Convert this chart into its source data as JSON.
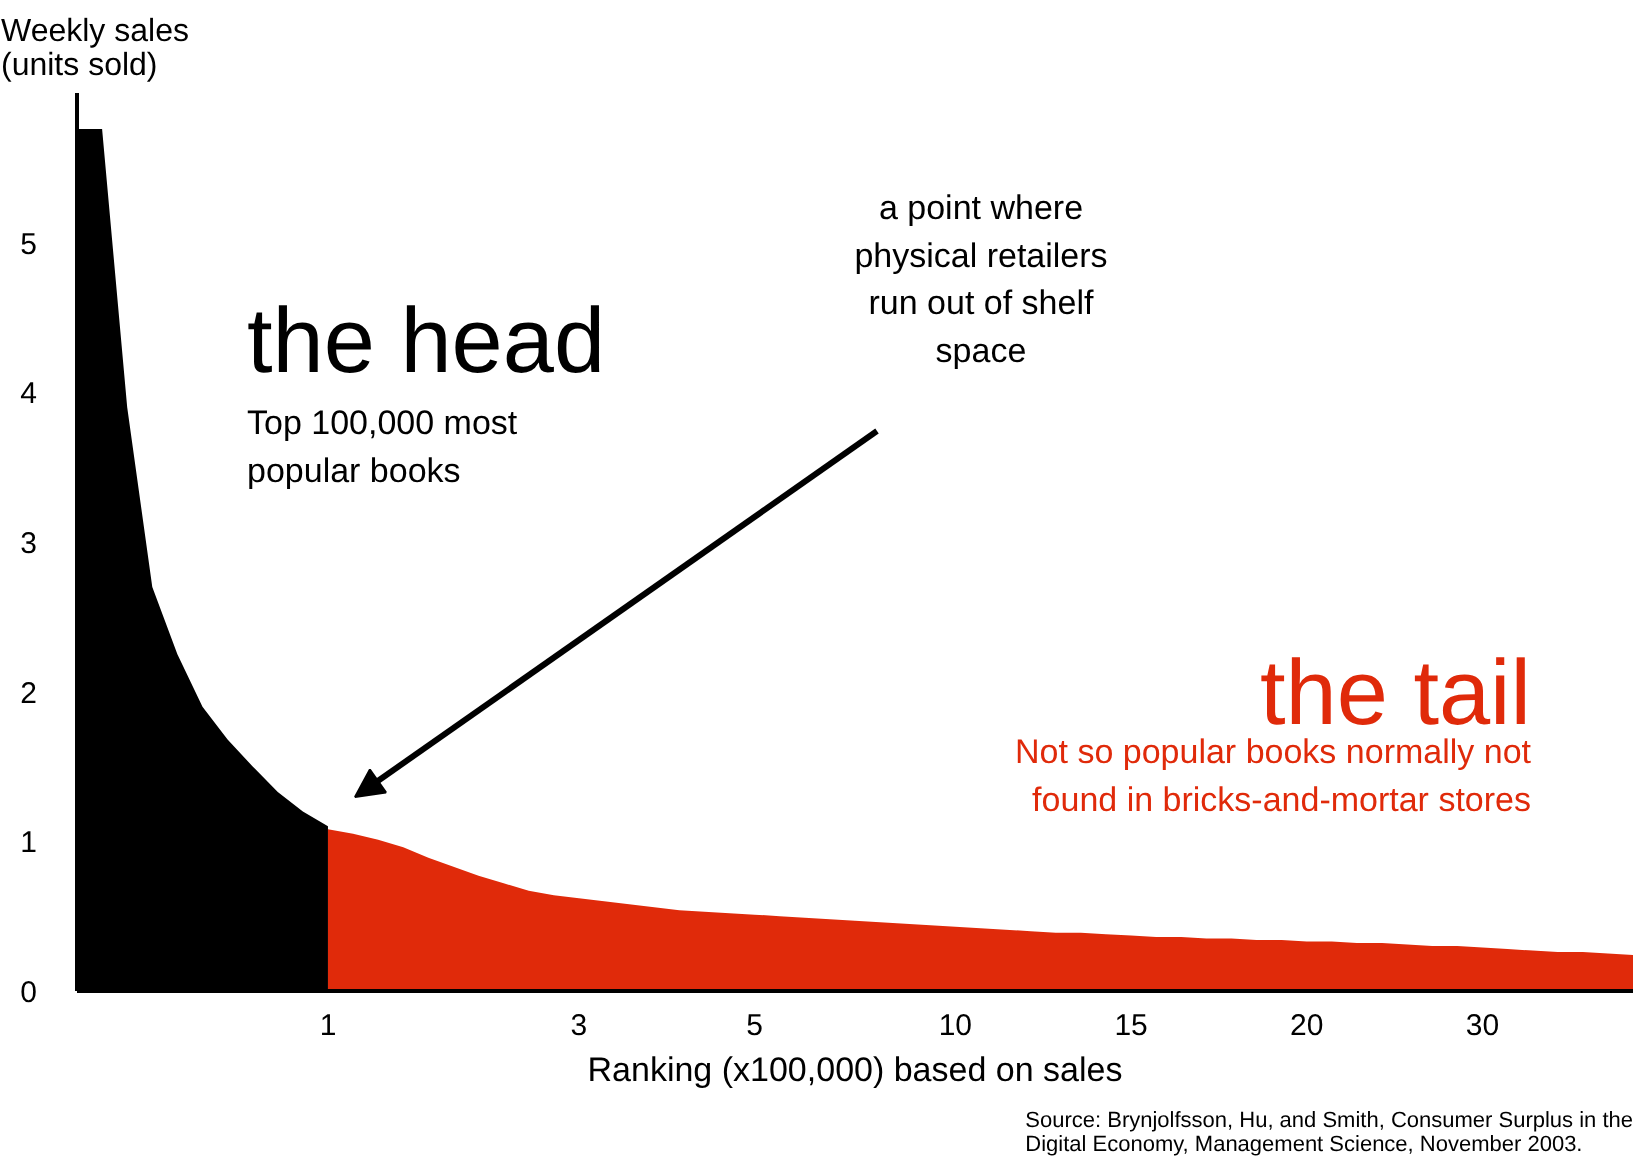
{
  "chart_data": {
    "type": "area",
    "ylabel": "Weekly sales\n(units sold)",
    "xlabel": "Ranking (x100,000) based on sales",
    "ylim": [
      0,
      6.0
    ],
    "yticks": [
      0,
      1,
      2,
      3,
      4,
      5
    ],
    "categories": [
      null,
      null,
      null,
      null,
      null,
      null,
      null,
      null,
      null,
      null,
      "1",
      null,
      null,
      null,
      null,
      null,
      null,
      null,
      null,
      null,
      "3",
      null,
      null,
      null,
      null,
      null,
      null,
      "5",
      null,
      null,
      null,
      null,
      null,
      null,
      null,
      "10",
      null,
      null,
      null,
      null,
      null,
      null,
      "15",
      null,
      null,
      null,
      null,
      null,
      null,
      "20",
      null,
      null,
      null,
      null,
      null,
      null,
      "30",
      null,
      null,
      null,
      null,
      null,
      null
    ],
    "series": [
      {
        "name": "the head",
        "color": "#000000",
        "values": [
          5.76,
          5.76,
          3.9,
          2.7,
          2.25,
          1.9,
          1.68,
          1.5,
          1.33,
          1.2,
          1.1,
          null,
          null,
          null,
          null,
          null,
          null,
          null,
          null,
          null,
          null,
          null,
          null,
          null,
          null,
          null,
          null,
          null,
          null,
          null,
          null,
          null,
          null,
          null,
          null,
          null,
          null,
          null,
          null,
          null,
          null,
          null,
          null,
          null,
          null,
          null,
          null,
          null,
          null,
          null,
          null,
          null,
          null,
          null,
          null,
          null,
          null,
          null,
          null,
          null,
          null,
          null,
          null
        ]
      },
      {
        "name": "the tail",
        "color": "#e02a0a",
        "values": [
          null,
          null,
          null,
          null,
          null,
          null,
          null,
          null,
          null,
          null,
          1.08,
          1.05,
          1.01,
          0.96,
          0.89,
          0.83,
          0.77,
          0.72,
          0.67,
          0.64,
          0.62,
          0.6,
          0.58,
          0.56,
          0.54,
          0.53,
          0.52,
          0.51,
          0.5,
          0.49,
          0.48,
          0.47,
          0.46,
          0.45,
          0.44,
          0.43,
          0.42,
          0.41,
          0.4,
          0.39,
          0.39,
          0.38,
          0.37,
          0.36,
          0.36,
          0.35,
          0.35,
          0.34,
          0.34,
          0.33,
          0.33,
          0.32,
          0.32,
          0.31,
          0.3,
          0.3,
          0.29,
          0.28,
          0.27,
          0.26,
          0.26,
          0.25,
          0.24
        ]
      }
    ],
    "annotations": [
      "Top 100,000 most popular books",
      "Not so popular books normally not found in bricks-and-mortar stores",
      "a point where physical retailers run out of shelf space",
      "Source: Brynjolfsson, Hu, and Smith, Consumer Surplus in the Digital Economy, Management Science, November 2003."
    ],
    "grid": false
  }
}
